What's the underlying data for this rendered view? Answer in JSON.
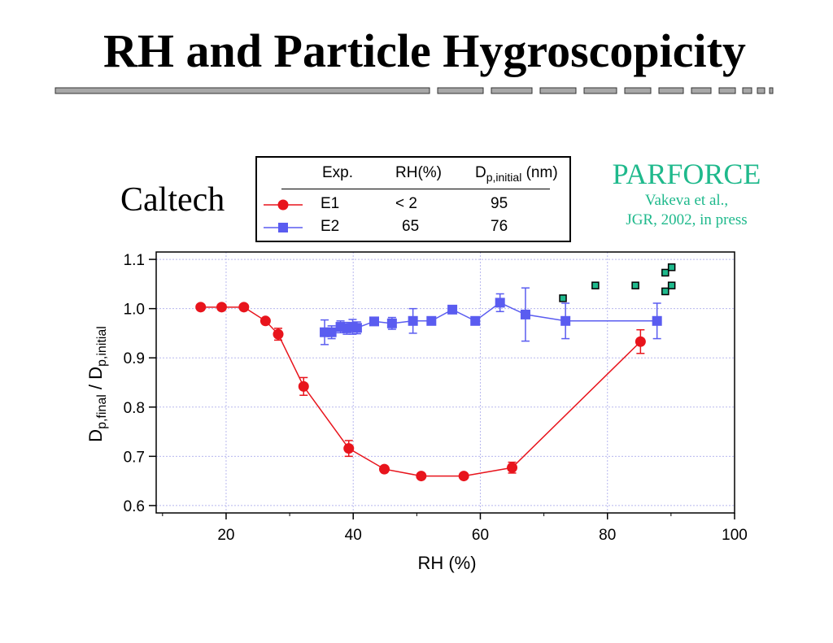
{
  "slide": {
    "title": "RH and Particle Hygroscopicity",
    "left_label": "Caltech",
    "right_label": {
      "name": "PARFORCE",
      "line1": "Vakeva et al.,",
      "line2": "JGR, 2002, in press"
    }
  },
  "legend": {
    "headers": {
      "exp": "Exp.",
      "rh": "RH(%)",
      "d_main": "D",
      "d_sub": "p,initial",
      "d_unit": "(nm)"
    },
    "rows": [
      {
        "exp": "E1",
        "rh": "< 2",
        "d": "95"
      },
      {
        "exp": "E2",
        "rh": "65",
        "d": "76"
      }
    ]
  },
  "colors": {
    "E1": "#e8141c",
    "E2": "#5a5cf0",
    "PARFORCE": "#1fb98c",
    "grid": "#b8b8ee"
  },
  "chart_data": {
    "type": "scatter",
    "xlabel": "RH (%)",
    "ylabel_main": "D",
    "ylabel_sub1": "p,final",
    "ylabel_sep": " / D",
    "ylabel_sub2": "p,initial",
    "xlim": [
      9,
      100
    ],
    "ylim": [
      0.585,
      1.115
    ],
    "xticks": [
      20,
      40,
      60,
      80,
      100
    ],
    "yticks": [
      0.6,
      0.7,
      0.8,
      0.9,
      1.0,
      1.1
    ],
    "ytick_labels": [
      "0.6",
      "0.7",
      "0.8",
      "0.9",
      "1.0",
      "1.1"
    ],
    "grid": true,
    "series": [
      {
        "name": "E1",
        "marker": "circle",
        "line": true,
        "points": [
          {
            "x": 16.0,
            "y": 1.003,
            "err": 0
          },
          {
            "x": 19.3,
            "y": 1.003,
            "err": 0
          },
          {
            "x": 22.8,
            "y": 1.003,
            "err": 0
          },
          {
            "x": 26.2,
            "y": 0.975,
            "err": 0
          },
          {
            "x": 28.2,
            "y": 0.948,
            "err": 0.012
          },
          {
            "x": 32.2,
            "y": 0.842,
            "err": 0.018
          },
          {
            "x": 39.3,
            "y": 0.716,
            "err": 0.016
          },
          {
            "x": 44.9,
            "y": 0.674,
            "err": 0
          },
          {
            "x": 50.7,
            "y": 0.66,
            "err": 0
          },
          {
            "x": 57.4,
            "y": 0.66,
            "err": 0
          },
          {
            "x": 65.0,
            "y": 0.677,
            "err": 0.011
          },
          {
            "x": 85.2,
            "y": 0.933,
            "err": 0.024
          }
        ]
      },
      {
        "name": "E2",
        "marker": "square",
        "line": true,
        "points": [
          {
            "x": 35.5,
            "y": 0.952,
            "err": 0.025
          },
          {
            "x": 36.6,
            "y": 0.952,
            "err": 0.013
          },
          {
            "x": 38.0,
            "y": 0.963,
            "err": 0.012
          },
          {
            "x": 39.0,
            "y": 0.96,
            "err": 0.012
          },
          {
            "x": 39.9,
            "y": 0.963,
            "err": 0.015
          },
          {
            "x": 40.6,
            "y": 0.961,
            "err": 0.012
          },
          {
            "x": 43.3,
            "y": 0.974,
            "err": 0
          },
          {
            "x": 46.1,
            "y": 0.97,
            "err": 0.012
          },
          {
            "x": 49.4,
            "y": 0.975,
            "err": 0.025
          },
          {
            "x": 52.3,
            "y": 0.975,
            "err": 0
          },
          {
            "x": 55.6,
            "y": 0.998,
            "err": 0
          },
          {
            "x": 59.2,
            "y": 0.975,
            "err": 0
          },
          {
            "x": 63.1,
            "y": 1.012,
            "err": 0.018
          },
          {
            "x": 67.1,
            "y": 0.988,
            "err": 0.054
          },
          {
            "x": 73.4,
            "y": 0.975,
            "err": 0.036
          },
          {
            "x": 87.8,
            "y": 0.975,
            "err": 0.036
          }
        ]
      },
      {
        "name": "PARFORCE",
        "marker": "square-small",
        "line": false,
        "points": [
          {
            "x": 73.0,
            "y": 1.021,
            "err": 0
          },
          {
            "x": 78.1,
            "y": 1.047,
            "err": 0
          },
          {
            "x": 84.4,
            "y": 1.047,
            "err": 0
          },
          {
            "x": 89.1,
            "y": 1.035,
            "err": 0
          },
          {
            "x": 89.1,
            "y": 1.073,
            "err": 0
          },
          {
            "x": 90.1,
            "y": 1.084,
            "err": 0
          },
          {
            "x": 90.1,
            "y": 1.047,
            "err": 0
          }
        ]
      }
    ]
  }
}
